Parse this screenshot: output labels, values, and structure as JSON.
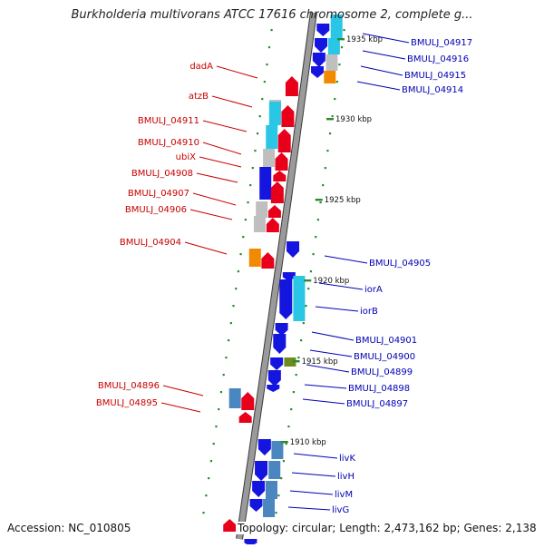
{
  "title": "Burkholderia multivorans ATCC 17616 chromosome 2, complete g...",
  "footer": {
    "accession": "Accession: NC_010805",
    "topology": "Topology: circular; Length: 2,473,162 bp; Genes: 2,138"
  },
  "colors": {
    "backbone": "#9a9a9a",
    "backbone_edge": "#3a3a3a",
    "forward_gene": "#e8001a",
    "reverse_gene": "#1515e0",
    "rna": "#29c6e6",
    "other": "#f28a00",
    "pseudo": "#bfbfbf",
    "steel": "#4a86c0",
    "olive": "#6e8c1e",
    "tick": "#2c8a2c",
    "left_label": "#c80000",
    "right_label": "#0000b4"
  },
  "kbp_ticks": [
    {
      "label": "1935 kbp"
    },
    {
      "label": "1930 kbp"
    },
    {
      "label": "1925 kbp"
    },
    {
      "label": "1920 kbp"
    },
    {
      "label": "1915 kbp"
    },
    {
      "label": "1910 kbp"
    }
  ],
  "left_labels": [
    {
      "text": "dadA"
    },
    {
      "text": "atzB"
    },
    {
      "text": "BMULJ_04911"
    },
    {
      "text": "BMULJ_04910"
    },
    {
      "text": "ubiX"
    },
    {
      "text": "BMULJ_04908"
    },
    {
      "text": "BMULJ_04907"
    },
    {
      "text": "BMULJ_04906"
    },
    {
      "text": "BMULJ_04904"
    },
    {
      "text": "BMULJ_04896"
    },
    {
      "text": "BMULJ_04895"
    }
  ],
  "right_labels": [
    {
      "text": "BMULJ_04917"
    },
    {
      "text": "BMULJ_04916"
    },
    {
      "text": "BMULJ_04915"
    },
    {
      "text": "BMULJ_04914"
    },
    {
      "text": "BMULJ_04905"
    },
    {
      "text": "iorA"
    },
    {
      "text": "iorB"
    },
    {
      "text": "BMULJ_04901"
    },
    {
      "text": "BMULJ_04900"
    },
    {
      "text": "BMULJ_04899"
    },
    {
      "text": "BMULJ_04898"
    },
    {
      "text": "BMULJ_04897"
    },
    {
      "text": "livK"
    },
    {
      "text": "livH"
    },
    {
      "text": "livM"
    },
    {
      "text": "livG"
    }
  ]
}
